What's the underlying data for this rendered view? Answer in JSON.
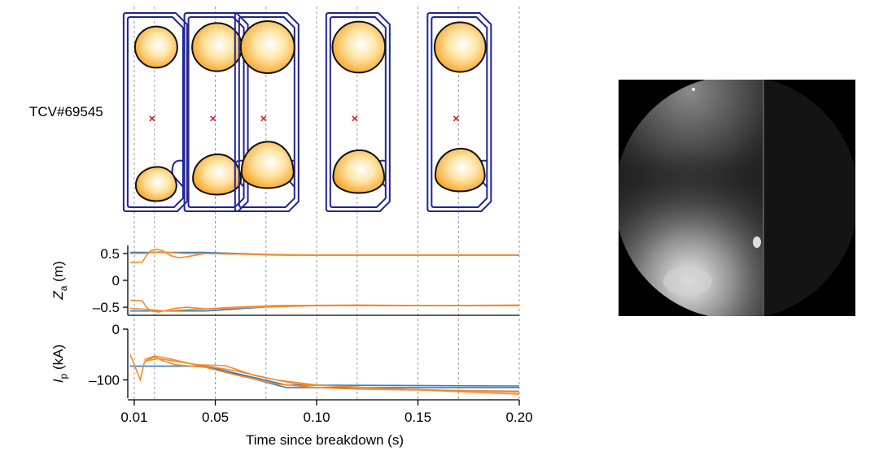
{
  "shot_label": "TCV#69545",
  "colors": {
    "vessel": "#1f2396",
    "plasma_edge": "#ffd94a",
    "plasma_core": "#ffffff",
    "plasma_outline": "#111111",
    "axis_marker": "#e5141e",
    "target": "#2f7fc1",
    "actual": "#f68a2b",
    "guide": "#9a9a9a"
  },
  "snapshot_times": [
    0.02,
    0.05,
    0.075,
    0.12,
    0.17
  ],
  "chart_data": [
    {
      "type": "line",
      "ylabel": "Z",
      "ylabel_sub": "a",
      "ylabel_unit": " (m)",
      "xlim": [
        0.008,
        0.2
      ],
      "ylim": [
        -0.65,
        0.65
      ],
      "yticks": [
        {
          "v": 0.5,
          "label": "0.5"
        },
        {
          "v": 0,
          "label": "0"
        },
        {
          "v": -0.5,
          "label": "–0.5"
        }
      ],
      "series": [
        {
          "role": "target",
          "points": [
            [
              0.008,
              0.52
            ],
            [
              0.045,
              0.52
            ],
            [
              0.085,
              0.47
            ],
            [
              0.2,
              0.47
            ]
          ]
        },
        {
          "role": "actual",
          "points": [
            [
              0.008,
              0.33
            ],
            [
              0.014,
              0.34
            ],
            [
              0.016,
              0.46
            ],
            [
              0.018,
              0.55
            ],
            [
              0.021,
              0.58
            ],
            [
              0.024,
              0.55
            ],
            [
              0.028,
              0.46
            ],
            [
              0.032,
              0.42
            ],
            [
              0.036,
              0.44
            ],
            [
              0.045,
              0.5
            ],
            [
              0.06,
              0.49
            ],
            [
              0.08,
              0.47
            ],
            [
              0.1,
              0.47
            ],
            [
              0.15,
              0.47
            ],
            [
              0.2,
              0.47
            ]
          ]
        },
        {
          "role": "actual",
          "points": [
            [
              0.008,
              0.5
            ],
            [
              0.015,
              0.5
            ],
            [
              0.022,
              0.53
            ],
            [
              0.035,
              0.5
            ],
            [
              0.06,
              0.49
            ],
            [
              0.1,
              0.47
            ],
            [
              0.2,
              0.47
            ]
          ]
        },
        {
          "role": "target",
          "points": [
            [
              0.008,
              -0.57
            ],
            [
              0.045,
              -0.57
            ],
            [
              0.085,
              -0.47
            ],
            [
              0.2,
              -0.47
            ]
          ]
        },
        {
          "role": "actual",
          "points": [
            [
              0.008,
              -0.37
            ],
            [
              0.014,
              -0.38
            ],
            [
              0.016,
              -0.5
            ],
            [
              0.018,
              -0.57
            ],
            [
              0.022,
              -0.59
            ],
            [
              0.026,
              -0.56
            ],
            [
              0.03,
              -0.52
            ],
            [
              0.036,
              -0.5
            ],
            [
              0.045,
              -0.53
            ],
            [
              0.06,
              -0.5
            ],
            [
              0.08,
              -0.47
            ],
            [
              0.12,
              -0.46
            ],
            [
              0.16,
              -0.47
            ],
            [
              0.2,
              -0.46
            ]
          ]
        },
        {
          "role": "actual",
          "points": [
            [
              0.008,
              -0.52
            ],
            [
              0.016,
              -0.54
            ],
            [
              0.025,
              -0.57
            ],
            [
              0.04,
              -0.54
            ],
            [
              0.07,
              -0.5
            ],
            [
              0.1,
              -0.47
            ],
            [
              0.2,
              -0.47
            ]
          ]
        }
      ]
    },
    {
      "type": "line",
      "ylabel": "I",
      "ylabel_sub": "p",
      "ylabel_unit": " (kA)",
      "xlim": [
        0.008,
        0.2
      ],
      "ylim": [
        -136,
        0
      ],
      "yticks": [
        {
          "v": 0,
          "label": "0"
        },
        {
          "v": -100,
          "label": "–100"
        }
      ],
      "xticks": [
        0.01,
        0.05,
        0.1,
        0.15,
        0.2
      ],
      "xtick_labels": [
        "0.01",
        "0.05",
        "0.10",
        "0.15",
        "0.20"
      ],
      "xlabel": "Time since breakdown (s)",
      "series": [
        {
          "role": "target",
          "points": [
            [
              0.008,
              -73
            ],
            [
              0.045,
              -73
            ],
            [
              0.085,
              -115
            ],
            [
              0.2,
              -115
            ]
          ]
        },
        {
          "role": "target",
          "points": [
            [
              0.045,
              -73
            ],
            [
              0.085,
              -110
            ],
            [
              0.2,
              -112
            ]
          ]
        },
        {
          "role": "actual",
          "points": [
            [
              0.008,
              -50
            ],
            [
              0.01,
              -70
            ],
            [
              0.013,
              -100
            ],
            [
              0.015,
              -65
            ],
            [
              0.017,
              -60
            ],
            [
              0.02,
              -55
            ],
            [
              0.024,
              -62
            ],
            [
              0.03,
              -70
            ],
            [
              0.045,
              -75
            ],
            [
              0.06,
              -90
            ],
            [
              0.08,
              -108
            ],
            [
              0.1,
              -115
            ],
            [
              0.12,
              -118
            ],
            [
              0.15,
              -120
            ],
            [
              0.2,
              -122
            ]
          ]
        },
        {
          "role": "actual",
          "points": [
            [
              0.015,
              -60
            ],
            [
              0.02,
              -53
            ],
            [
              0.026,
              -57
            ],
            [
              0.04,
              -70
            ],
            [
              0.055,
              -72
            ],
            [
              0.07,
              -92
            ],
            [
              0.09,
              -108
            ],
            [
              0.11,
              -112
            ],
            [
              0.14,
              -118
            ],
            [
              0.2,
              -128
            ]
          ]
        },
        {
          "role": "actual",
          "points": [
            [
              0.015,
              -63
            ],
            [
              0.022,
              -58
            ],
            [
              0.035,
              -66
            ],
            [
              0.06,
              -82
            ],
            [
              0.08,
              -100
            ],
            [
              0.1,
              -110
            ],
            [
              0.13,
              -117
            ],
            [
              0.2,
              -124
            ]
          ]
        }
      ]
    }
  ]
}
